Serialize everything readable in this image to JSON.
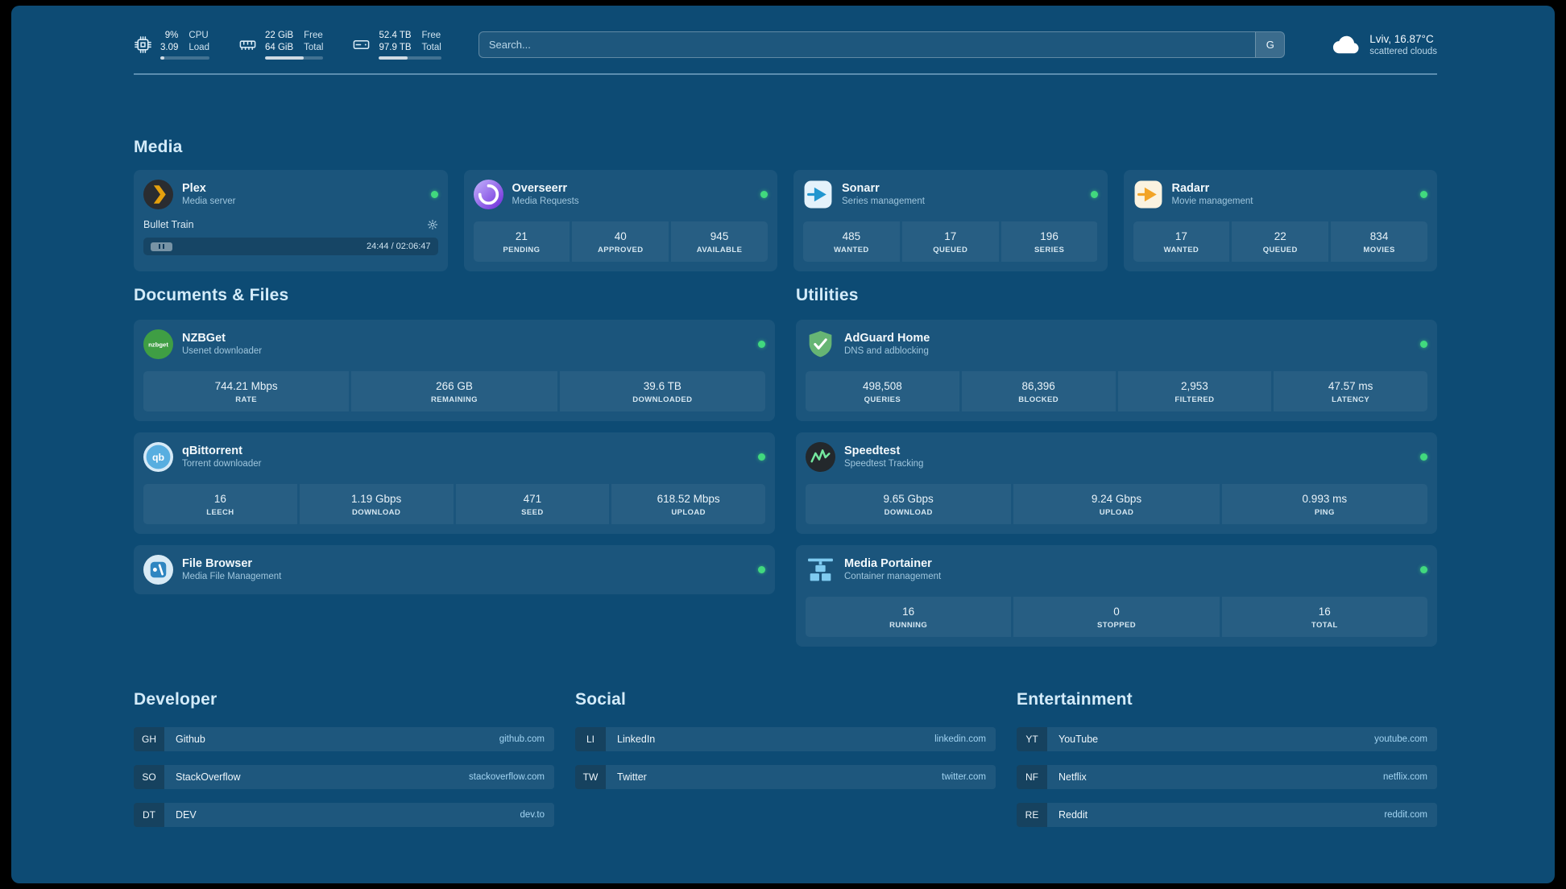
{
  "page": {
    "background": "#0d4b74",
    "accent_green": "#41d97e"
  },
  "header": {
    "resources": [
      {
        "icon": "cpu-icon",
        "v1": "9%",
        "v2": "3.09",
        "l1": "CPU",
        "l2": "Load",
        "bar": "9%"
      },
      {
        "icon": "memory-icon",
        "v1": "22 GiB",
        "v2": "64 GiB",
        "l1": "Free",
        "l2": "Total",
        "bar": "66%"
      },
      {
        "icon": "disk-icon",
        "v1": "52.4 TB",
        "v2": "97.9 TB",
        "l1": "Free",
        "l2": "Total",
        "bar": "46%"
      }
    ],
    "search": {
      "placeholder": "Search...",
      "provider": "G"
    },
    "weather": {
      "location": "Lviv, 16.87°C",
      "condition": "scattered clouds"
    }
  },
  "media": {
    "title": "Media",
    "plex": {
      "name": "Plex",
      "desc": "Media server",
      "now_playing": "Bullet Train",
      "time": "24:44 / 02:06:47"
    },
    "overseerr": {
      "name": "Overseerr",
      "desc": "Media Requests",
      "stats": [
        {
          "value": "21",
          "label": "PENDING"
        },
        {
          "value": "40",
          "label": "APPROVED"
        },
        {
          "value": "945",
          "label": "AVAILABLE"
        }
      ]
    },
    "sonarr": {
      "name": "Sonarr",
      "desc": "Series management",
      "stats": [
        {
          "value": "485",
          "label": "WANTED"
        },
        {
          "value": "17",
          "label": "QUEUED"
        },
        {
          "value": "196",
          "label": "SERIES"
        }
      ]
    },
    "radarr": {
      "name": "Radarr",
      "desc": "Movie management",
      "stats": [
        {
          "value": "17",
          "label": "WANTED"
        },
        {
          "value": "22",
          "label": "QUEUED"
        },
        {
          "value": "834",
          "label": "MOVIES"
        }
      ]
    }
  },
  "documents": {
    "title": "Documents & Files",
    "nzbget": {
      "name": "NZBGet",
      "desc": "Usenet downloader",
      "icon_text": "nzbget",
      "stats": [
        {
          "value": "744.21 Mbps",
          "label": "RATE"
        },
        {
          "value": "266 GB",
          "label": "REMAINING"
        },
        {
          "value": "39.6 TB",
          "label": "DOWNLOADED"
        }
      ]
    },
    "qbittorrent": {
      "name": "qBittorrent",
      "desc": "Torrent downloader",
      "icon_text": "qb",
      "stats": [
        {
          "value": "16",
          "label": "LEECH"
        },
        {
          "value": "1.19 Gbps",
          "label": "DOWNLOAD"
        },
        {
          "value": "471",
          "label": "SEED"
        },
        {
          "value": "618.52 Mbps",
          "label": "UPLOAD"
        }
      ]
    },
    "filebrowser": {
      "name": "File Browser",
      "desc": "Media File Management"
    }
  },
  "utilities": {
    "title": "Utilities",
    "adguard": {
      "name": "AdGuard Home",
      "desc": "DNS and adblocking",
      "stats": [
        {
          "value": "498,508",
          "label": "QUERIES"
        },
        {
          "value": "86,396",
          "label": "BLOCKED"
        },
        {
          "value": "2,953",
          "label": "FILTERED"
        },
        {
          "value": "47.57 ms",
          "label": "LATENCY"
        }
      ]
    },
    "speedtest": {
      "name": "Speedtest",
      "desc": "Speedtest Tracking",
      "stats": [
        {
          "value": "9.65 Gbps",
          "label": "DOWNLOAD"
        },
        {
          "value": "9.24 Gbps",
          "label": "UPLOAD"
        },
        {
          "value": "0.993 ms",
          "label": "PING"
        }
      ]
    },
    "portainer": {
      "name": "Media Portainer",
      "desc": "Container management",
      "stats": [
        {
          "value": "16",
          "label": "RUNNING"
        },
        {
          "value": "0",
          "label": "STOPPED"
        },
        {
          "value": "16",
          "label": "TOTAL"
        }
      ]
    }
  },
  "bookmarks": {
    "developer": {
      "title": "Developer",
      "items": [
        {
          "abbr": "GH",
          "name": "Github",
          "url": "github.com"
        },
        {
          "abbr": "SO",
          "name": "StackOverflow",
          "url": "stackoverflow.com"
        },
        {
          "abbr": "DT",
          "name": "DEV",
          "url": "dev.to"
        }
      ]
    },
    "social": {
      "title": "Social",
      "items": [
        {
          "abbr": "LI",
          "name": "LinkedIn",
          "url": "linkedin.com"
        },
        {
          "abbr": "TW",
          "name": "Twitter",
          "url": "twitter.com"
        }
      ]
    },
    "entertainment": {
      "title": "Entertainment",
      "items": [
        {
          "abbr": "YT",
          "name": "YouTube",
          "url": "youtube.com"
        },
        {
          "abbr": "NF",
          "name": "Netflix",
          "url": "netflix.com"
        },
        {
          "abbr": "RE",
          "name": "Reddit",
          "url": "reddit.com"
        }
      ]
    }
  }
}
